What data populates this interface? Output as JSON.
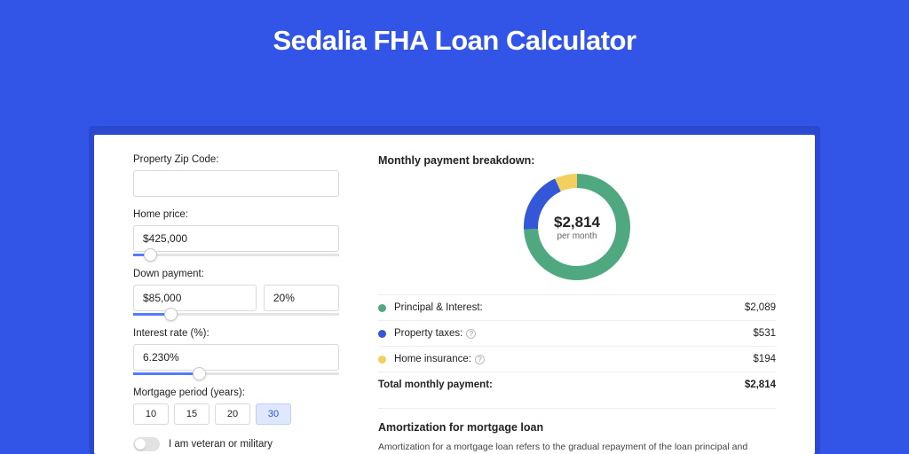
{
  "page": {
    "title": "Sedalia FHA Loan Calculator",
    "background_color": "#3255e8",
    "card_shadow_color": "#2a49cf",
    "card_bg": "#ffffff"
  },
  "form": {
    "zip": {
      "label": "Property Zip Code:",
      "value": ""
    },
    "home_price": {
      "label": "Home price:",
      "value": "$425,000",
      "slider_pct": 8
    },
    "down_payment": {
      "label": "Down payment:",
      "amount": "$85,000",
      "pct": "20%",
      "slider_pct": 18
    },
    "interest_rate": {
      "label": "Interest rate (%):",
      "value": "6.230%",
      "slider_pct": 32
    },
    "mortgage_period": {
      "label": "Mortgage period (years):",
      "options": [
        "10",
        "15",
        "20",
        "30"
      ],
      "selected": "30"
    },
    "veteran": {
      "label": "I am veteran or military",
      "checked": false
    }
  },
  "breakdown": {
    "title": "Monthly payment breakdown:",
    "donut": {
      "center_amount": "$2,814",
      "center_sub": "per month",
      "slices": [
        {
          "name": "principal_interest",
          "value": 2089,
          "pct": 74.2,
          "color": "#4fa87f"
        },
        {
          "name": "property_taxes",
          "value": 531,
          "pct": 18.9,
          "color": "#3357d6"
        },
        {
          "name": "home_insurance",
          "value": 194,
          "pct": 6.9,
          "color": "#f2cf5e"
        }
      ],
      "ring_thickness": 16,
      "outer_radius": 60
    },
    "rows": [
      {
        "color": "#4fa87f",
        "label": "Principal & Interest:",
        "info": false,
        "value": "$2,089"
      },
      {
        "color": "#3357d6",
        "label": "Property taxes:",
        "info": true,
        "value": "$531"
      },
      {
        "color": "#f2cf5e",
        "label": "Home insurance:",
        "info": true,
        "value": "$194"
      }
    ],
    "total": {
      "label": "Total monthly payment:",
      "value": "$2,814"
    }
  },
  "amortization": {
    "title": "Amortization for mortgage loan",
    "text": "Amortization for a mortgage loan refers to the gradual repayment of the loan principal and interest over a specified"
  }
}
